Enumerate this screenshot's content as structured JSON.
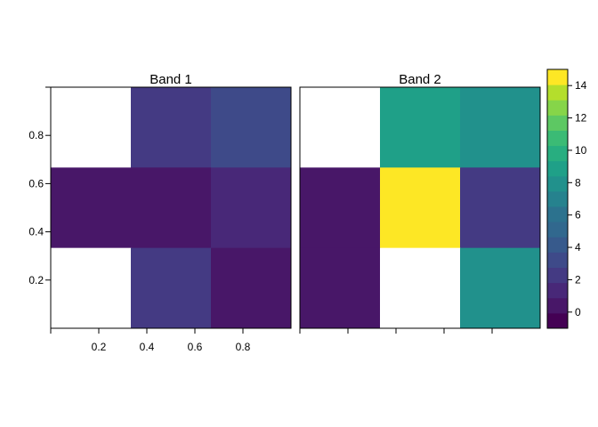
{
  "chart_data": {
    "type": "heatmap",
    "panels": [
      {
        "title": "Band 1",
        "cells": [
          [
            null,
            2,
            3
          ],
          [
            0,
            0,
            1
          ],
          [
            null,
            2,
            0
          ]
        ]
      },
      {
        "title": "Band 2",
        "cells": [
          [
            null,
            9,
            8
          ],
          [
            0,
            15,
            2
          ],
          [
            0,
            null,
            8
          ]
        ]
      }
    ],
    "x_range": [
      0,
      1
    ],
    "y_range": [
      0,
      1
    ],
    "x_ticks": [
      0.2,
      0.4,
      0.6,
      0.8
    ],
    "y_ticks": [
      0.2,
      0.4,
      0.6,
      0.8
    ],
    "colorbar": {
      "range": [
        -1,
        15
      ],
      "levels": 17,
      "ticks": [
        0,
        2,
        4,
        6,
        8,
        10,
        12,
        14
      ],
      "colors": [
        "#440154",
        "#481768",
        "#482878",
        "#443A83",
        "#3E4A89",
        "#375A8C",
        "#31688E",
        "#2C728E",
        "#26828E",
        "#21918C",
        "#1FA088",
        "#28AE80",
        "#3BBB75",
        "#5DC863",
        "#86D549",
        "#B4DE2C",
        "#FDE725"
      ]
    },
    "na_color": "#ffffff"
  }
}
